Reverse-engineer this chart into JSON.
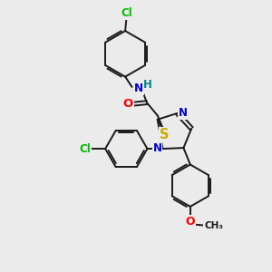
{
  "bg_color": "#ebebeb",
  "bond_color": "#1a1a1a",
  "bond_width": 1.4,
  "atom_colors": {
    "N": "#0000cc",
    "O": "#ff0000",
    "S": "#ccaa00",
    "Cl": "#00bb00",
    "H": "#008888",
    "C": "#1a1a1a"
  },
  "font_size": 8.5,
  "fig_size": [
    3.0,
    3.0
  ],
  "dpi": 100
}
